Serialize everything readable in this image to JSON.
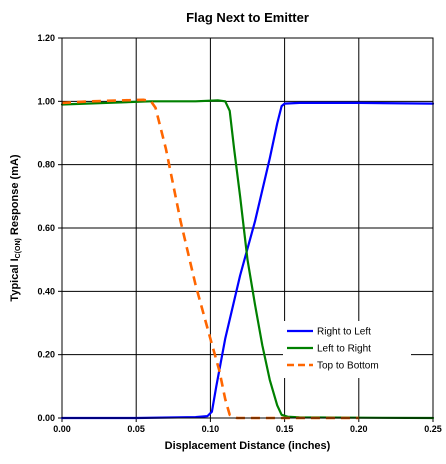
{
  "chart_data": {
    "type": "line",
    "title": "Flag Next to Emitter",
    "xlabel": "Displacement Distance (inches)",
    "ylabel": {
      "prefix": "Typical I",
      "subscript": "C(ON)",
      "suffix": " Response (mA)"
    },
    "xlim": [
      0,
      0.25
    ],
    "ylim": [
      0,
      1.2
    ],
    "x_ticks": [
      0.0,
      0.05,
      0.1,
      0.15,
      0.2,
      0.25
    ],
    "x_tick_labels": [
      "0.00",
      "0.05",
      "0.10",
      "0.15",
      "0.20",
      "0.25"
    ],
    "y_ticks": [
      0.0,
      0.2,
      0.4,
      0.6,
      0.8,
      1.0,
      1.2
    ],
    "y_tick_labels": [
      "0.00",
      "0.20",
      "0.40",
      "0.60",
      "0.80",
      "1.00",
      "1.20"
    ],
    "grid": true,
    "legend_position": "bottom-right",
    "series": [
      {
        "name": "Right to Left",
        "color": "#0000ff",
        "dash": "solid",
        "x": [
          0.0,
          0.05,
          0.09,
          0.098,
          0.101,
          0.104,
          0.11,
          0.12,
          0.13,
          0.14,
          0.145,
          0.148,
          0.15,
          0.16,
          0.2,
          0.25
        ],
        "y": [
          0.0,
          0.0,
          0.003,
          0.006,
          0.02,
          0.1,
          0.25,
          0.45,
          0.62,
          0.82,
          0.93,
          0.985,
          0.993,
          0.995,
          0.995,
          0.993
        ]
      },
      {
        "name": "Left to Right",
        "color": "#008000",
        "dash": "solid",
        "x": [
          0.0,
          0.03,
          0.06,
          0.09,
          0.105,
          0.11,
          0.113,
          0.116,
          0.12,
          0.125,
          0.13,
          0.135,
          0.14,
          0.145,
          0.148,
          0.152,
          0.16,
          0.2,
          0.25
        ],
        "y": [
          0.99,
          0.995,
          1.0,
          1.0,
          1.003,
          1.0,
          0.97,
          0.85,
          0.7,
          0.5,
          0.36,
          0.23,
          0.12,
          0.04,
          0.01,
          0.004,
          0.002,
          0.001,
          0.0
        ]
      },
      {
        "name": "Top to Bottom",
        "color": "#ff6600",
        "dash": "dashed",
        "x": [
          0.0,
          0.02,
          0.04,
          0.055,
          0.06,
          0.063,
          0.07,
          0.08,
          0.09,
          0.1,
          0.106,
          0.11,
          0.113,
          0.118,
          0.13,
          0.15,
          0.2
        ],
        "y": [
          0.995,
          1.0,
          1.003,
          1.005,
          1.0,
          0.98,
          0.85,
          0.62,
          0.42,
          0.25,
          0.15,
          0.06,
          0.01,
          0.0,
          0.0,
          0.0,
          0.0
        ]
      }
    ]
  }
}
